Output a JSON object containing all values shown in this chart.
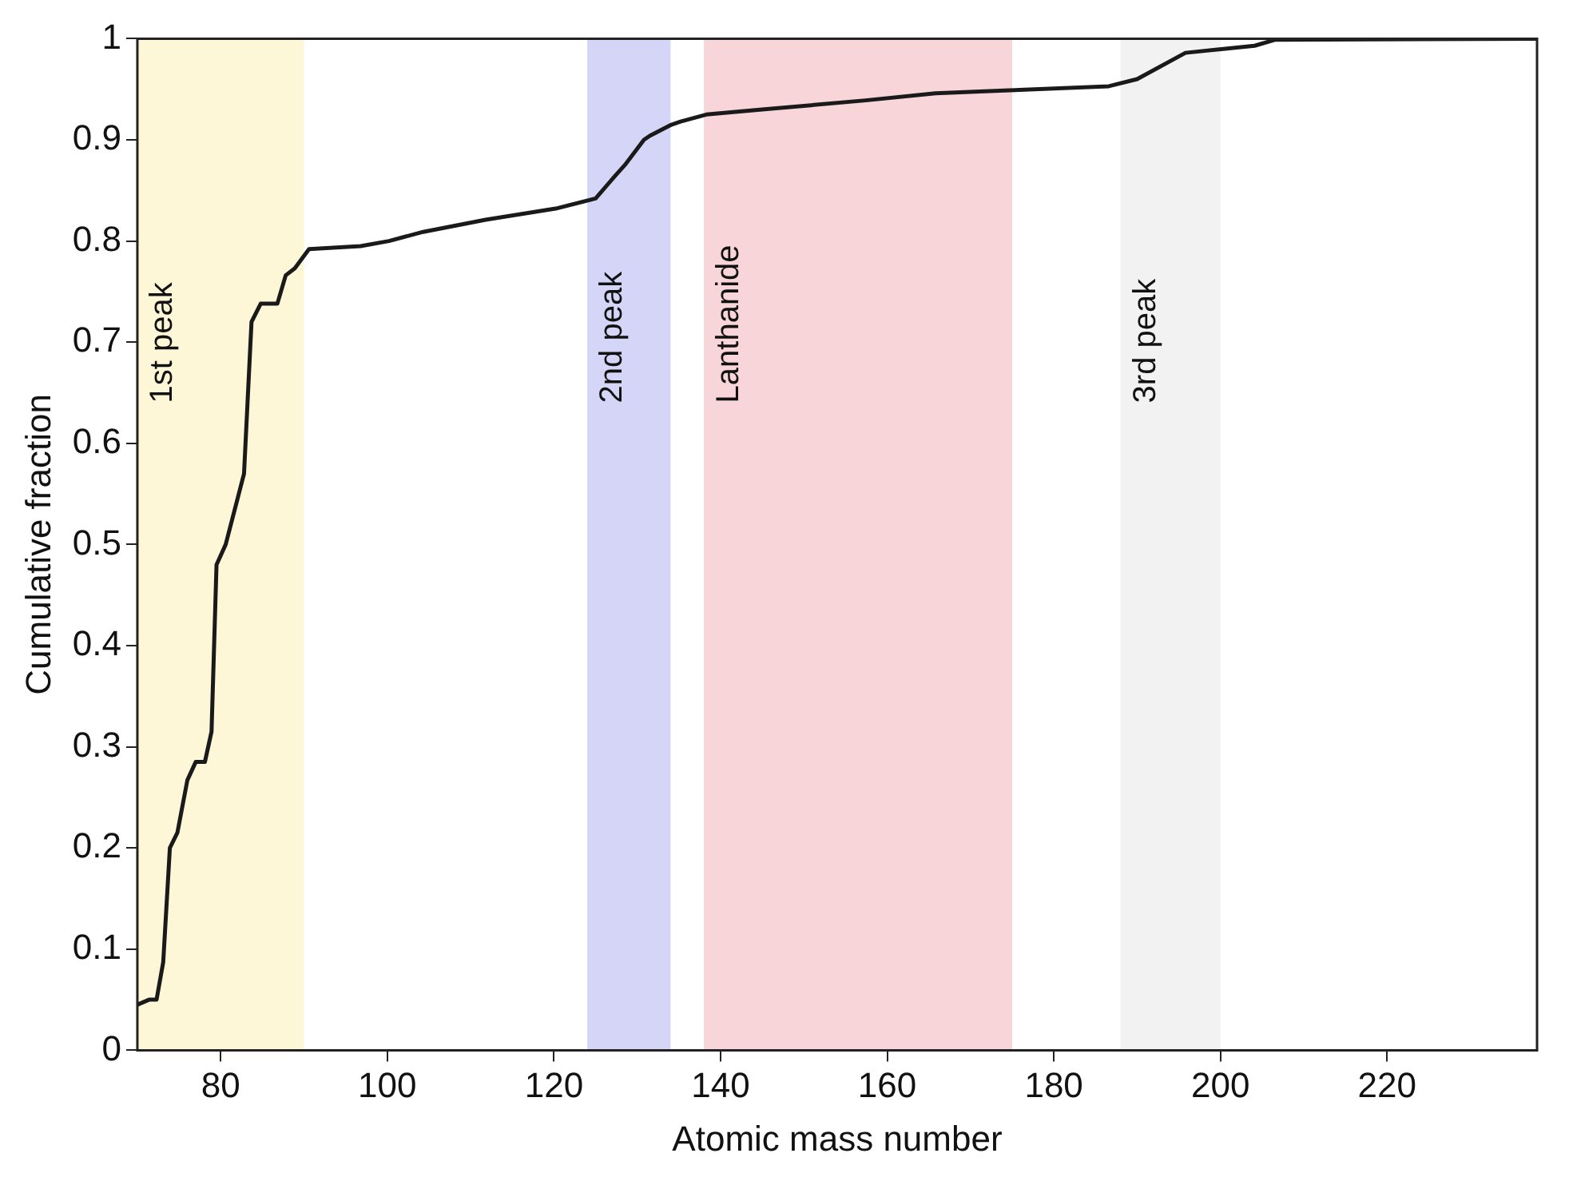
{
  "chart_data": {
    "type": "line",
    "xlabel": "Atomic mass number",
    "ylabel": "Cumulative fraction",
    "xlim": [
      70,
      238
    ],
    "xticks": [
      80,
      100,
      120,
      140,
      160,
      180,
      200,
      220
    ],
    "ylim": [
      0,
      1
    ],
    "yticks": [
      0,
      0.1,
      0.2,
      0.3,
      0.4,
      0.5,
      0.6,
      0.7,
      0.8,
      0.9,
      1
    ],
    "grid": false,
    "legend": false,
    "marker": "none",
    "line_style": "solid",
    "series": [
      {
        "color": "#1a1a1a",
        "x": [
          70,
          71.4,
          72.3,
          73.1,
          73.9,
          74.8,
          76,
          77,
          78.1,
          78.9,
          79.5,
          80.6,
          82.8,
          83.7,
          84.8,
          86.8,
          87.8,
          88.9,
          90.6,
          96.8,
          100.2,
          104.3,
          111.8,
          120.2,
          125,
          127.4,
          128.5,
          130.8,
          131.5,
          134.1,
          135.2,
          138.3,
          145,
          157.4,
          165.8,
          174.7,
          186.6,
          190,
          195.8,
          204.1,
          206.6,
          238
        ],
        "values": [
          0.045,
          0.05,
          0.05,
          0.087,
          0.2,
          0.215,
          0.267,
          0.285,
          0.285,
          0.315,
          0.48,
          0.5,
          0.57,
          0.72,
          0.738,
          0.738,
          0.766,
          0.773,
          0.792,
          0.795,
          0.8,
          0.809,
          0.821,
          0.832,
          0.842,
          0.865,
          0.875,
          0.9,
          0.904,
          0.915,
          0.918,
          0.925,
          0.93,
          0.939,
          0.946,
          0.949,
          0.953,
          0.96,
          0.986,
          0.993,
          0.999,
          1
        ]
      }
    ],
    "bands": [
      {
        "axis": "x",
        "from": 70,
        "to": 90,
        "label": "1st peak",
        "color": "#fdf7d8"
      },
      {
        "axis": "x",
        "from": 124,
        "to": 134,
        "label": "2nd peak",
        "color": "#d5d6f7"
      },
      {
        "axis": "x",
        "from": 138,
        "to": 175,
        "label": "Lanthanide",
        "color": "#f7d5d9"
      },
      {
        "axis": "x",
        "from": 188,
        "to": 200,
        "label": "3rd peak",
        "color": "#f2f2f2"
      }
    ]
  }
}
